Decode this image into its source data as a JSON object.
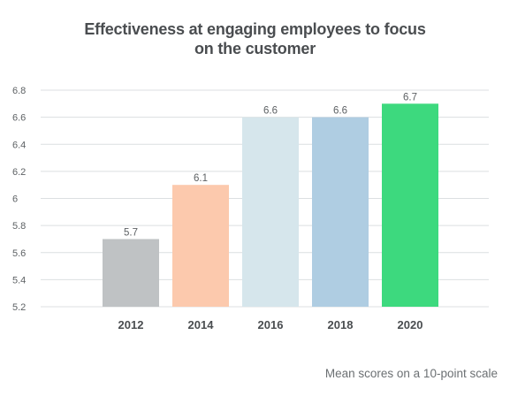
{
  "title": {
    "line1": "Effectiveness at engaging employees to focus",
    "line2": "on the customer"
  },
  "footnote": "Mean scores on a 10-point scale",
  "chart_data": {
    "type": "bar",
    "title": "Effectiveness at engaging employees to focus on the customer",
    "categories": [
      "2012",
      "2014",
      "2016",
      "2018",
      "2020"
    ],
    "values": [
      5.7,
      6.1,
      6.6,
      6.6,
      6.7
    ],
    "value_labels": [
      "5.7",
      "6.1",
      "6.6",
      "6.6",
      "6.7"
    ],
    "colors": [
      "#bfc2c4",
      "#fcc9ad",
      "#d6e6ec",
      "#afcde2",
      "#3dd97e"
    ],
    "ylim": [
      5.2,
      6.8
    ],
    "yticks": [
      5.2,
      5.4,
      5.6,
      5.8,
      6,
      6.2,
      6.4,
      6.6,
      6.8
    ],
    "ytick_labels": [
      "5.2",
      "5.4",
      "5.6",
      "5.8",
      "6",
      "6.2",
      "6.4",
      "6.6",
      "6.8"
    ],
    "grid": true,
    "xlabel": "",
    "ylabel": "",
    "colors_meta": {
      "grid": "#dcdfe1",
      "tick_text": "#5d6164",
      "category_text": "#4a4d50"
    }
  }
}
